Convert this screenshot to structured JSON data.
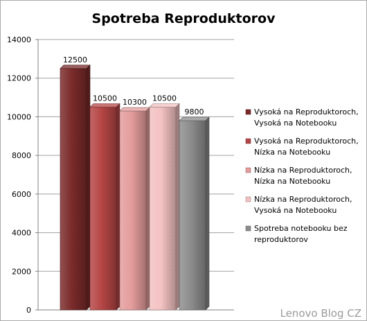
{
  "chart_data": {
    "type": "bar",
    "title": "Spotreba Reproduktorov",
    "xlabel": "",
    "ylabel": "",
    "ylim": [
      0,
      14000
    ],
    "yticks": [
      0,
      2000,
      4000,
      6000,
      8000,
      10000,
      12000,
      14000
    ],
    "grid": true,
    "legend_position": "right",
    "series": [
      {
        "name": "Vysoká na Reproduktoroch, Vysoká na Notebooku",
        "label_lines": [
          "Vysoká na Reproduktoroch,",
          "Vysoká na Notebooku"
        ],
        "value": 12500,
        "color": "#7a2a2a"
      },
      {
        "name": "Vysoká na Reproduktoroch, Nízka na Notebooku",
        "label_lines": [
          "Vysoká na Reproduktoroch,",
          "Nízka na Notebooku"
        ],
        "value": 10500,
        "color": "#b54545"
      },
      {
        "name": "Nízka na Reproduktoroch, Nízka na Notebooku",
        "label_lines": [
          "Nízka na Reproduktoroch,",
          "Nízka na Notebooku"
        ],
        "value": 10300,
        "color": "#e49c9c"
      },
      {
        "name": "Nízka na Reproduktoroch, Vysoká na Notebooku",
        "label_lines": [
          "Nízka na Reproduktoroch,",
          "Vysoká na Notebooku"
        ],
        "value": 10500,
        "color": "#f3c1c1"
      },
      {
        "name": "Spotreba notebooku bez reproduktorov",
        "label_lines": [
          "Spotreba notebooku bez",
          "reproduktorov"
        ],
        "value": 9800,
        "color": "#8c8c8c"
      }
    ]
  },
  "watermark": "Lenovo Blog CZ"
}
